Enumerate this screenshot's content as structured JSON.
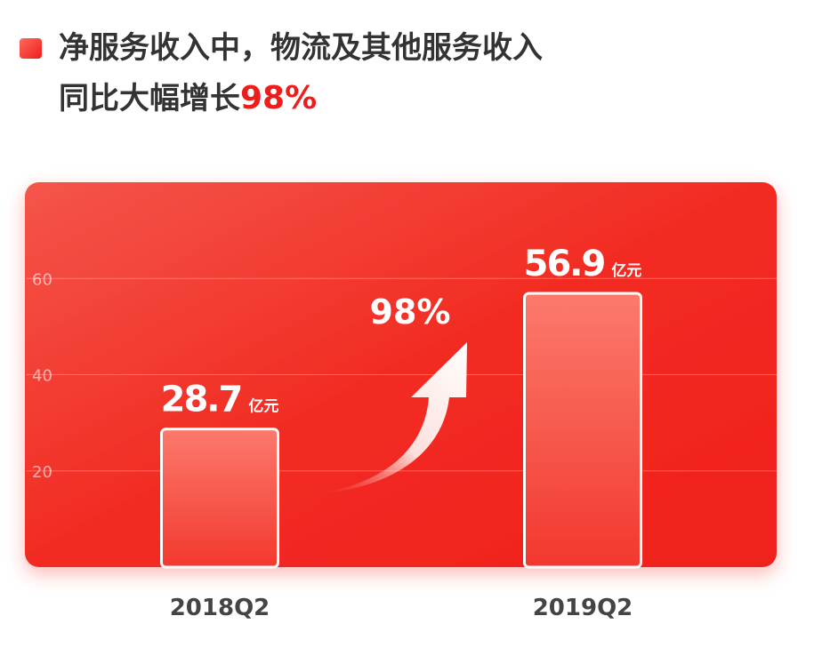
{
  "chart_data": {
    "type": "bar",
    "title_lines": [
      "净服务收入中，物流及其他服务收入",
      "同比大幅增长"
    ],
    "title_highlight": "98%",
    "categories": [
      "2018Q2",
      "2019Q2"
    ],
    "values": [
      28.7,
      56.9
    ],
    "unit": "亿元",
    "annotation": "98%",
    "color": "#f2231f",
    "ylim": [
      0,
      80
    ],
    "yticks": [
      20,
      40,
      60
    ],
    "grid": true
  }
}
